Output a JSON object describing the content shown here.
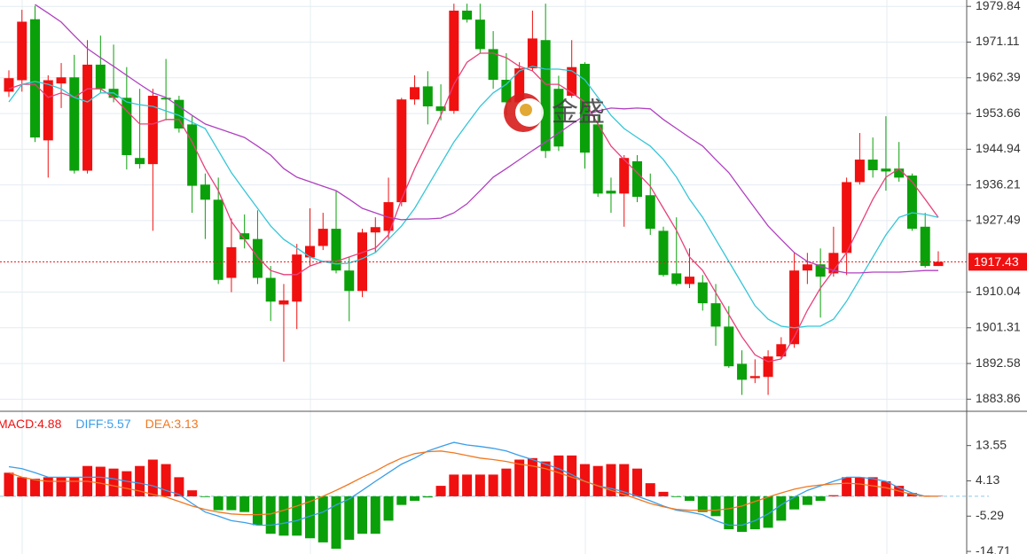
{
  "watermark": "金盛",
  "chart_data": [
    {
      "type": "candlestick",
      "ylim": [
        1880.9,
        1981.4
      ],
      "yticks": [
        1979.84,
        1971.11,
        1962.39,
        1953.66,
        1944.94,
        1936.21,
        1927.49,
        1910.04,
        1901.31,
        1892.58,
        1883.86
      ],
      "grid": true,
      "up_color": "#f01010",
      "down_color": "#0aa00a",
      "last_price": 1917.43,
      "open": [
        1959.0,
        1961.8,
        1976.7,
        1947.1,
        1961,
        1962.5,
        1939.7,
        1965.6,
        1959.7,
        1957.5,
        1942.8,
        1941.3,
        1957.5,
        1957,
        1951,
        1936.3,
        1932.6,
        1913.5,
        1924.4,
        1923,
        1913.5,
        1907,
        1907.7,
        1918.5,
        1921.3,
        1925.5,
        1915.3,
        1910.3,
        1924.6,
        1925,
        1932,
        1957.1,
        1960.3,
        1955.4,
        1954.3,
        1978.8,
        1976.6,
        1969.4,
        1961.9,
        1956.4,
        1964.7,
        1971.6,
        1959.7,
        1958,
        1965.8,
        1951,
        1934.8,
        1934.1,
        1942,
        1933.7,
        1925,
        1914.6,
        1912,
        1912.4,
        1907.3,
        1901.6,
        1892.5,
        1889,
        1889.3,
        1894.3,
        1897.3,
        1915.3,
        1916.8,
        1914.6,
        1919.6,
        1936.9,
        1942.4,
        1940.2,
        1940.2,
        1938.5,
        1926,
        1916.4
      ],
      "high": [
        1964.2,
        1979,
        1980,
        1963,
        1966,
        1968,
        1971.6,
        1972.7,
        1970.5,
        1965,
        1959.7,
        1959.7,
        1967,
        1958,
        1953,
        1939,
        1938,
        1928,
        1929,
        1930,
        1916.4,
        1912,
        1921.8,
        1930.5,
        1929.4,
        1934.8,
        1918.6,
        1925.5,
        1928.3,
        1938,
        1957.5,
        1963,
        1964,
        1960.8,
        1980.5,
        1980.5,
        1980.5,
        1973.8,
        1968.4,
        1966.2,
        1978.8,
        1980.5,
        1962.9,
        1971.6,
        1966.2,
        1953,
        1938,
        1943.5,
        1943.5,
        1939,
        1926,
        1928.3,
        1920.7,
        1914.2,
        1912,
        1906.6,
        1895.8,
        1893.6,
        1895.8,
        1899,
        1919.6,
        1919.6,
        1920.7,
        1926,
        1938,
        1948.9,
        1947.8,
        1953,
        1946.7,
        1939,
        1929.4,
        1920
      ],
      "low": [
        1957.7,
        1959,
        1946.7,
        1938,
        1955,
        1939,
        1939,
        1958.6,
        1956.4,
        1940,
        1940.2,
        1925,
        1952,
        1949,
        1929.4,
        1923,
        1912,
        1910,
        1920.7,
        1912,
        1903,
        1893,
        1901,
        1916.4,
        1920.3,
        1914.6,
        1902.9,
        1908.8,
        1919.6,
        1923,
        1931,
        1955.8,
        1951,
        1952,
        1953.6,
        1975.9,
        1968.4,
        1959.7,
        1953.2,
        1955.3,
        1964,
        1942.8,
        1944.5,
        1957.5,
        1940.2,
        1933.3,
        1929.4,
        1926,
        1932,
        1924,
        1913.8,
        1911.6,
        1911,
        1905.5,
        1896.9,
        1891.5,
        1884.9,
        1887.8,
        1884.9,
        1893.6,
        1896.4,
        1912,
        1903.8,
        1913.8,
        1914.2,
        1936.3,
        1938,
        1934.8,
        1937,
        1925,
        1916,
        1916.4
      ],
      "close": [
        1962.3,
        1976.1,
        1947.8,
        1961.8,
        1962.5,
        1939.7,
        1965.6,
        1959.7,
        1957.5,
        1943.5,
        1941.3,
        1958,
        1957.1,
        1950,
        1936,
        1932.6,
        1913,
        1921,
        1922.9,
        1913.5,
        1907.7,
        1908,
        1919.2,
        1921.3,
        1925.5,
        1915.3,
        1910.3,
        1924.6,
        1925.9,
        1932,
        1957.1,
        1960.1,
        1955.4,
        1954.3,
        1978.8,
        1976.6,
        1969.4,
        1961.9,
        1956.4,
        1964.7,
        1972,
        1944.5,
        1945.6,
        1965,
        1944.1,
        1934.1,
        1934.1,
        1942.8,
        1933.3,
        1925.5,
        1914.2,
        1912,
        1913.8,
        1907.3,
        1901.6,
        1891.9,
        1888.6,
        1889.5,
        1894.3,
        1897.3,
        1915.3,
        1916.8,
        1913.8,
        1919.6,
        1936.9,
        1942.4,
        1939.8,
        1939.5,
        1938,
        1925.5,
        1916.4,
        1917.43
      ],
      "series": [
        {
          "color": "#e8407a",
          "values": [
            1959.7,
            1960.8,
            1960.8,
            1957.6,
            1958.7,
            1957.6,
            1959.7,
            1959.7,
            1957.6,
            1954.3,
            1951.1,
            1951.1,
            1952.2,
            1952.2,
            1946.7,
            1940.2,
            1934.8,
            1927.3,
            1922.9,
            1918.6,
            1915.3,
            1914.3,
            1914.3,
            1916.4,
            1917.5,
            1917.5,
            1918.6,
            1919.7,
            1920.8,
            1924.0,
            1932.7,
            1940.2,
            1946.7,
            1953.2,
            1960.8,
            1966.2,
            1968.4,
            1968.4,
            1967.3,
            1965.2,
            1964.1,
            1960.8,
            1960.8,
            1958.7,
            1956.5,
            1951.1,
            1945.7,
            1942.4,
            1939.2,
            1935.9,
            1930.5,
            1925.1,
            1918.6,
            1915.3,
            1909.9,
            1904.5,
            1899.1,
            1894.7,
            1893.0,
            1893.7,
            1899.1,
            1905.6,
            1911.0,
            1915.3,
            1919.7,
            1926.2,
            1932.7,
            1938.1,
            1940.2,
            1937.0,
            1932.7,
            1928.3
          ]
        },
        {
          "color": "#35c6d8",
          "values": [
            1956.5,
            1960.8,
            1961.5,
            1960.8,
            1959.7,
            1957.6,
            1956.5,
            1958.7,
            1958.7,
            1956.5,
            1955.8,
            1955.4,
            1954.3,
            1953.2,
            1951.5,
            1950.0,
            1944.6,
            1939.2,
            1934.8,
            1930.5,
            1926.2,
            1922.9,
            1920.8,
            1918.6,
            1917.5,
            1916.9,
            1917.1,
            1918.2,
            1919.7,
            1922.9,
            1926.2,
            1930.5,
            1935.9,
            1941.3,
            1946.7,
            1951.1,
            1955.4,
            1958.7,
            1960.8,
            1964.1,
            1965.2,
            1964.5,
            1964.5,
            1964.1,
            1961.9,
            1957.6,
            1953.2,
            1950.0,
            1947.8,
            1945.7,
            1942.4,
            1938.1,
            1932.7,
            1928.3,
            1922.9,
            1917.5,
            1912.1,
            1906.7,
            1903.4,
            1901.7,
            1901.3,
            1901.7,
            1901.7,
            1903.4,
            1907.8,
            1913.2,
            1918.6,
            1924.0,
            1928.3,
            1929.4,
            1929.0,
            1928.3
          ]
        },
        {
          "color": "#b040c0",
          "values": [
            null,
            null,
            1980.3,
            1978.2,
            1976.0,
            1972.7,
            1969.5,
            1967.3,
            1965.2,
            1963.0,
            1960.8,
            1958.7,
            1957.6,
            1955.4,
            1953.2,
            1951.1,
            1950.0,
            1948.9,
            1947.8,
            1945.7,
            1943.5,
            1940.2,
            1938.1,
            1937.0,
            1935.9,
            1934.8,
            1932.7,
            1930.5,
            1929.4,
            1928.3,
            1927.7,
            1927.9,
            1927.9,
            1928.1,
            1929.4,
            1931.6,
            1934.8,
            1938.1,
            1940.2,
            1942.4,
            1944.6,
            1946.7,
            1948.9,
            1951.1,
            1953.2,
            1954.3,
            1955.0,
            1954.8,
            1955.0,
            1954.8,
            1952.2,
            1950.0,
            1947.8,
            1945.7,
            1942.4,
            1939.2,
            1934.8,
            1930.5,
            1926.2,
            1922.9,
            1919.7,
            1917.5,
            1916.4,
            1915.3,
            1914.7,
            1914.7,
            1914.9,
            1914.9,
            1914.9,
            1915.1,
            1915.3,
            1915.3
          ]
        }
      ]
    },
    {
      "type": "macd",
      "ylim": [
        -15.4,
        22.7
      ],
      "yticks": [
        13.55,
        4.13,
        -5.29,
        -14.71
      ],
      "series": [
        {
          "name": "MACD:",
          "current": 4.88,
          "style": "bar",
          "color": "#f01010",
          "down_color": "#0aa00a",
          "values": [
            6.3,
            5.1,
            4.7,
            5.1,
            5.1,
            5.1,
            8.1,
            7.9,
            7.4,
            6.7,
            8.1,
            9.8,
            8.6,
            5.1,
            1.6,
            -0.2,
            -3.7,
            -3.7,
            -4.2,
            -7.7,
            -10.0,
            -10.5,
            -10.5,
            -11.2,
            -12.3,
            -14.0,
            -11.6,
            -10.0,
            -10.0,
            -6.5,
            -2.3,
            -1.2,
            -0.3,
            2.8,
            5.8,
            5.8,
            5.8,
            5.8,
            7.4,
            9.8,
            10.2,
            9.3,
            10.9,
            10.9,
            8.6,
            8.1,
            8.6,
            8.6,
            7.4,
            3.5,
            1.2,
            -0.2,
            -1.2,
            -4.2,
            -5.3,
            -8.8,
            -9.5,
            -8.8,
            -8.4,
            -6.5,
            -3.5,
            -2.3,
            -1.2,
            0.3,
            5.1,
            5.1,
            5.1,
            4.0,
            2.8,
            0.9,
            0.2,
            0.1
          ]
        },
        {
          "name": "DIFF:",
          "current": 5.57,
          "style": "line",
          "color": "#3a9ee8",
          "values": [
            7.9,
            7.4,
            6.3,
            5.1,
            5.1,
            5.1,
            5.1,
            5.1,
            4.7,
            4.0,
            3.5,
            2.8,
            1.6,
            0.5,
            -1.9,
            -4.2,
            -5.3,
            -6.5,
            -7.0,
            -7.7,
            -7.7,
            -7.2,
            -6.5,
            -5.3,
            -4.2,
            -2.3,
            -0.7,
            1.6,
            4.0,
            6.3,
            8.6,
            10.2,
            12.1,
            13.3,
            14.4,
            13.7,
            13.3,
            12.8,
            12.1,
            10.9,
            9.8,
            8.6,
            7.4,
            5.8,
            4.0,
            2.8,
            2.1,
            1.2,
            0,
            -1.2,
            -2.6,
            -3.7,
            -4.2,
            -4.9,
            -6.5,
            -7.7,
            -7.7,
            -6.5,
            -4.7,
            -2.3,
            -0.2,
            1.6,
            2.8,
            4.0,
            5.1,
            5.1,
            4.7,
            4.0,
            2.3,
            0.9,
            0,
            0
          ]
        },
        {
          "name": "DEA:",
          "current": 3.13,
          "style": "line",
          "color": "#f07820",
          "values": [
            6.3,
            5.1,
            4.4,
            4.0,
            4.0,
            4.0,
            4.0,
            3.5,
            2.8,
            2.1,
            1.4,
            0.5,
            -0.2,
            -1.4,
            -2.6,
            -3.5,
            -4.2,
            -4.7,
            -4.9,
            -4.9,
            -4.7,
            -3.7,
            -2.6,
            -1.4,
            0,
            1.6,
            3.3,
            5.1,
            6.7,
            8.6,
            10.2,
            11.4,
            11.9,
            12.1,
            11.6,
            10.9,
            10.2,
            9.8,
            9.3,
            8.6,
            8.1,
            7.4,
            6.3,
            5.1,
            4.0,
            2.8,
            1.6,
            0.5,
            -0.7,
            -1.9,
            -2.8,
            -3.5,
            -3.7,
            -3.7,
            -3.7,
            -3.3,
            -2.6,
            -1.4,
            -0.2,
            0.9,
            1.9,
            2.6,
            3.0,
            3.3,
            3.5,
            3.3,
            2.8,
            2.3,
            1.4,
            0.5,
            0,
            0
          ]
        }
      ]
    }
  ]
}
